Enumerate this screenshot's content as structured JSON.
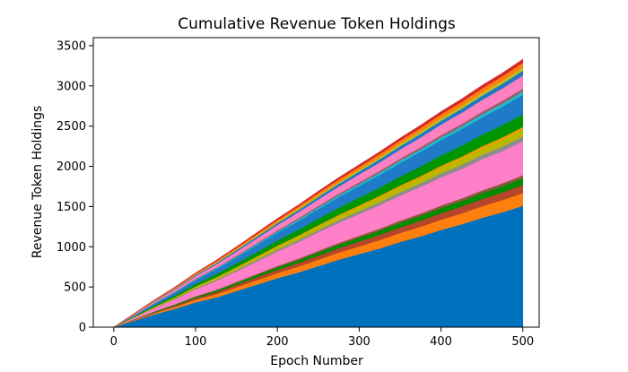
{
  "chart_data": {
    "type": "area",
    "stacked": true,
    "title": "Cumulative Revenue Token Holdings",
    "xlabel": "Epoch Number",
    "ylabel": "Revenue Token Holdings",
    "xlim": [
      -25,
      520
    ],
    "ylim": [
      0,
      3600
    ],
    "xticks": [
      0,
      100,
      200,
      300,
      400,
      500
    ],
    "yticks": [
      0,
      500,
      1000,
      1500,
      2000,
      2500,
      3000,
      3500
    ],
    "grid": false,
    "x": [
      0,
      25,
      50,
      75,
      100,
      125,
      150,
      175,
      200,
      225,
      250,
      275,
      300,
      325,
      350,
      375,
      400,
      425,
      450,
      475,
      500
    ],
    "series": [
      {
        "color": "#0072bd",
        "values": [
          0,
          80,
          160,
          230,
          310,
          370,
          450,
          530,
          610,
          680,
          760,
          840,
          910,
          980,
          1060,
          1130,
          1210,
          1280,
          1360,
          1430,
          1510
        ]
      },
      {
        "color": "#ff7f0e",
        "values": [
          0,
          8,
          16,
          24,
          32,
          40,
          48,
          56,
          64,
          72,
          80,
          88,
          96,
          104,
          112,
          120,
          128,
          136,
          144,
          152,
          160
        ]
      },
      {
        "color": "#b5452b",
        "values": [
          0,
          5,
          10,
          15,
          20,
          25,
          30,
          35,
          40,
          45,
          50,
          55,
          60,
          65,
          70,
          75,
          80,
          85,
          90,
          95,
          100
        ]
      },
      {
        "color": "#008c00",
        "values": [
          0,
          4,
          8,
          12,
          16,
          20,
          24,
          28,
          32,
          36,
          40,
          44,
          48,
          52,
          56,
          60,
          64,
          68,
          72,
          76,
          80
        ]
      },
      {
        "color": "#8a5a3c",
        "values": [
          0,
          2,
          4,
          6,
          8,
          10,
          12,
          14,
          16,
          18,
          20,
          22,
          24,
          26,
          28,
          30,
          32,
          34,
          36,
          38,
          40
        ]
      },
      {
        "color": "#ff7fc8",
        "values": [
          0,
          20,
          40,
          60,
          85,
          110,
          130,
          155,
          180,
          205,
          230,
          250,
          270,
          290,
          310,
          330,
          350,
          365,
          385,
          400,
          420
        ]
      },
      {
        "color": "#8c8c8c",
        "values": [
          0,
          3,
          6,
          9,
          12,
          15,
          18,
          21,
          24,
          27,
          30,
          33,
          36,
          39,
          42,
          45,
          48,
          51,
          54,
          57,
          60
        ]
      },
      {
        "color": "#b8b800",
        "values": [
          0,
          4,
          8,
          12,
          16,
          20,
          24,
          28,
          32,
          36,
          40,
          44,
          48,
          52,
          56,
          60,
          64,
          68,
          72,
          76,
          80
        ]
      },
      {
        "color": "#e8a000",
        "values": [
          0,
          2,
          4,
          6,
          8,
          10,
          12,
          14,
          16,
          18,
          20,
          22,
          24,
          26,
          28,
          30,
          32,
          34,
          36,
          38,
          40
        ]
      },
      {
        "color": "#009600",
        "values": [
          0,
          8,
          16,
          24,
          32,
          40,
          48,
          56,
          64,
          72,
          80,
          88,
          96,
          104,
          112,
          120,
          128,
          136,
          144,
          152,
          160
        ]
      },
      {
        "color": "#1f7ac8",
        "values": [
          0,
          12,
          24,
          36,
          48,
          60,
          72,
          84,
          96,
          108,
          120,
          132,
          144,
          156,
          168,
          180,
          192,
          204,
          216,
          228,
          240
        ]
      },
      {
        "color": "#17becf",
        "values": [
          0,
          2,
          4,
          6,
          8,
          10,
          12,
          14,
          16,
          18,
          20,
          22,
          24,
          26,
          28,
          30,
          32,
          34,
          36,
          38,
          40
        ]
      },
      {
        "color": "#a06070",
        "values": [
          0,
          2,
          4,
          6,
          8,
          10,
          12,
          14,
          16,
          18,
          20,
          22,
          24,
          26,
          28,
          30,
          32,
          34,
          36,
          38,
          40
        ]
      },
      {
        "color": "#ff80c0",
        "values": [
          0,
          8,
          16,
          24,
          32,
          40,
          48,
          56,
          64,
          72,
          80,
          88,
          96,
          104,
          112,
          120,
          128,
          136,
          144,
          152,
          160
        ]
      },
      {
        "color": "#1e78c8",
        "values": [
          0,
          3,
          6,
          9,
          12,
          15,
          18,
          21,
          24,
          27,
          30,
          33,
          36,
          39,
          42,
          45,
          48,
          51,
          54,
          57,
          60
        ]
      },
      {
        "color": "#bcbd22",
        "values": [
          0,
          2,
          4,
          6,
          8,
          10,
          12,
          14,
          16,
          18,
          20,
          22,
          24,
          26,
          28,
          30,
          32,
          34,
          36,
          38,
          40
        ]
      },
      {
        "color": "#ff7f0e",
        "values": [
          0,
          3,
          6,
          9,
          12,
          15,
          18,
          21,
          24,
          27,
          30,
          33,
          36,
          39,
          42,
          45,
          48,
          51,
          54,
          57,
          60
        ]
      },
      {
        "color": "#d62728",
        "values": [
          0,
          2,
          4,
          6,
          8,
          10,
          12,
          14,
          16,
          18,
          20,
          22,
          24,
          26,
          28,
          30,
          32,
          34,
          36,
          38,
          40
        ]
      }
    ]
  }
}
